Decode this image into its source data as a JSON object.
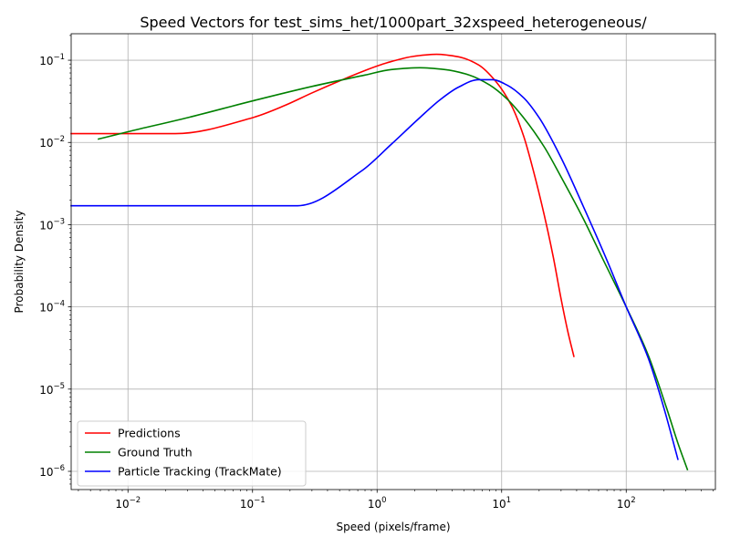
{
  "chart_data": {
    "type": "line",
    "title": "Speed Vectors for test_sims_het/1000part_32xspeed_heterogeneous/",
    "xlabel": "Speed (pixels/frame)",
    "ylabel": "Probability Density",
    "xscale": "log",
    "yscale": "log",
    "xlim": [
      0.0035,
      520
    ],
    "ylim": [
      6e-07,
      0.21
    ],
    "grid": true,
    "legend_position": "lower-left",
    "x_ticks": [
      {
        "value": 0.01,
        "base": "10",
        "exp": "−2"
      },
      {
        "value": 0.1,
        "base": "10",
        "exp": "−1"
      },
      {
        "value": 1,
        "base": "10",
        "exp": "0"
      },
      {
        "value": 10,
        "base": "10",
        "exp": "1"
      },
      {
        "value": 100,
        "base": "10",
        "exp": "2"
      }
    ],
    "y_ticks": [
      {
        "value": 1e-06,
        "base": "10",
        "exp": "−6"
      },
      {
        "value": 1e-05,
        "base": "10",
        "exp": "−5"
      },
      {
        "value": 0.0001,
        "base": "10",
        "exp": "−4"
      },
      {
        "value": 0.001,
        "base": "10",
        "exp": "−3"
      },
      {
        "value": 0.01,
        "base": "10",
        "exp": "−2"
      },
      {
        "value": 0.1,
        "base": "10",
        "exp": "−1"
      }
    ],
    "series": [
      {
        "name": "Predictions",
        "color": "#ff0000",
        "points": [
          [
            0.0035,
            0.0128
          ],
          [
            0.024,
            0.0128
          ],
          [
            0.1,
            0.02
          ],
          [
            0.18,
            0.028
          ],
          [
            0.3,
            0.04
          ],
          [
            0.5,
            0.056
          ],
          [
            0.8,
            0.075
          ],
          [
            1.2,
            0.093
          ],
          [
            2,
            0.112
          ],
          [
            3,
            0.118
          ],
          [
            4.5,
            0.11
          ],
          [
            6.5,
            0.088
          ],
          [
            9,
            0.055
          ],
          [
            12,
            0.028
          ],
          [
            15,
            0.012
          ],
          [
            18,
            0.0045
          ],
          [
            22,
            0.0013
          ],
          [
            26,
            0.0004
          ],
          [
            30,
            0.000125
          ],
          [
            34,
            5e-05
          ],
          [
            38,
            2.5e-05
          ]
        ]
      },
      {
        "name": "Ground Truth",
        "color": "#008000",
        "points": [
          [
            0.0058,
            0.011
          ],
          [
            0.01,
            0.0135
          ],
          [
            0.03,
            0.02
          ],
          [
            0.1,
            0.032
          ],
          [
            0.3,
            0.048
          ],
          [
            0.8,
            0.066
          ],
          [
            1.3,
            0.077
          ],
          [
            2.2,
            0.081
          ],
          [
            3.5,
            0.077
          ],
          [
            5.5,
            0.066
          ],
          [
            8,
            0.05
          ],
          [
            11,
            0.034
          ],
          [
            15,
            0.02
          ],
          [
            22,
            0.0088
          ],
          [
            30,
            0.0038
          ],
          [
            45,
            0.0012
          ],
          [
            65,
            0.00038
          ],
          [
            100,
            0.0001
          ],
          [
            150,
            2.6e-05
          ],
          [
            210,
            6e-06
          ],
          [
            260,
            2.2e-06
          ],
          [
            310,
            1.05e-06
          ]
        ]
      },
      {
        "name": "Particle Tracking (TrackMate)",
        "color": "#0000ff",
        "points": [
          [
            0.0035,
            0.0017
          ],
          [
            0.23,
            0.0017
          ],
          [
            0.75,
            0.0045
          ],
          [
            1.3,
            0.0095
          ],
          [
            2.2,
            0.02
          ],
          [
            3.2,
            0.033
          ],
          [
            4.5,
            0.047
          ],
          [
            6.5,
            0.058
          ],
          [
            8.5,
            0.058
          ],
          [
            11,
            0.05
          ],
          [
            15,
            0.035
          ],
          [
            20,
            0.02
          ],
          [
            30,
            0.0065
          ],
          [
            45,
            0.0017
          ],
          [
            70,
            0.00037
          ],
          [
            100,
            0.0001
          ],
          [
            150,
            2.4e-05
          ],
          [
            200,
            6e-06
          ],
          [
            260,
            1.4e-06
          ]
        ]
      }
    ]
  }
}
